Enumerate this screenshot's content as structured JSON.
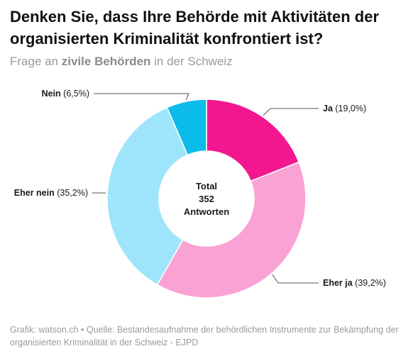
{
  "header": {
    "title": "Denken Sie, dass Ihre Behörde mit Aktivitäten der organisierten Kriminalität konfrontiert ist?",
    "subtitle_pre": "Frage an ",
    "subtitle_bold": "zivile Behörden",
    "subtitle_post": " in der Schweiz"
  },
  "chart_data": {
    "type": "pie",
    "donut": true,
    "center": {
      "line1": "Total",
      "line2": "352",
      "line3": "Antworten"
    },
    "slices": [
      {
        "label": "Ja",
        "pct_label": "(19,0%)",
        "value": 19.0,
        "color": "#f2168f"
      },
      {
        "label": "Eher ja",
        "pct_label": "(39,2%)",
        "value": 39.2,
        "color": "#fba2d4"
      },
      {
        "label": "Eher nein",
        "pct_label": "(35,2%)",
        "value": 35.2,
        "color": "#9ee5fb"
      },
      {
        "label": "Nein",
        "pct_label": "(6,5%)",
        "value": 6.5,
        "color": "#0bbbea"
      }
    ]
  },
  "footer": {
    "source": "Grafik: watson.ch • Quelle: Bestandesaufnahme der behördlichen Instrumente zur Bekämpfung der organisierten Kriminalität in der Schweiz - EJPD"
  }
}
